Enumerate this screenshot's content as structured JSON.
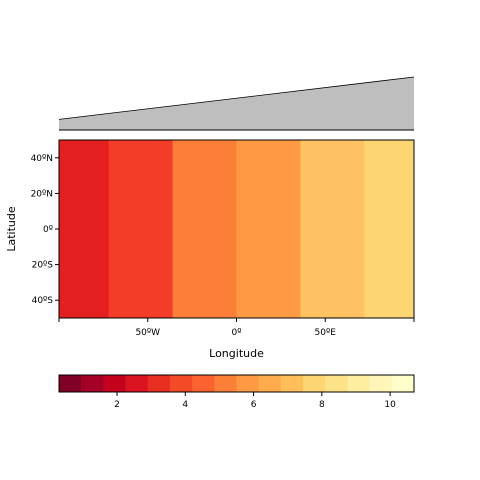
{
  "chart_data": {
    "type": "heatmap",
    "title": "",
    "xlabel": "Longitude",
    "ylabel": "Latitude",
    "xlim": [
      -100,
      100
    ],
    "ylim": [
      -50,
      50
    ],
    "x_ticks": [
      {
        "value": -50,
        "label": "50ºW"
      },
      {
        "value": 0,
        "label": "0º"
      },
      {
        "value": 50,
        "label": "50ºE"
      }
    ],
    "y_ticks": [
      {
        "value": 40,
        "label": "40ºN"
      },
      {
        "value": 20,
        "label": "20ºN"
      },
      {
        "value": 0,
        "label": "0º"
      },
      {
        "value": -20,
        "label": "20ºS"
      },
      {
        "value": -40,
        "label": "40ºS"
      }
    ],
    "cells": [
      {
        "x0": -100,
        "x1": -72,
        "value": 3.0,
        "color": "#E31F1F"
      },
      {
        "x0": -72,
        "x1": -36,
        "value": 4.0,
        "color": "#F43D28"
      },
      {
        "x0": -36,
        "x1": 0,
        "value": 5.0,
        "color": "#FD7E38"
      },
      {
        "x0": 0,
        "x1": 36,
        "value": 6.3,
        "color": "#FE9A44"
      },
      {
        "x0": 36,
        "x1": 72,
        "value": 7.5,
        "color": "#FEC262"
      },
      {
        "x0": 72,
        "x1": 100,
        "value": 8.5,
        "color": "#FED573"
      }
    ],
    "marginal_profile": {
      "fill": "#BEBEBE",
      "x": [
        -100,
        100
      ],
      "y": [
        0.2,
        1.0
      ],
      "ylim": [
        0,
        1.0
      ]
    },
    "colorbar": {
      "range": [
        0.3,
        10.7
      ],
      "ticks": [
        2,
        4,
        6,
        8,
        10
      ],
      "colors": [
        "#800026",
        "#A50026",
        "#C4001F",
        "#DA1420",
        "#E72E21",
        "#F34B27",
        "#FC6230",
        "#FD7E38",
        "#FE9A44",
        "#FEAB4E",
        "#FEBF5B",
        "#FED573",
        "#FEE287",
        "#FEEE9F",
        "#FFF5B8",
        "#FFFFCC"
      ]
    }
  }
}
